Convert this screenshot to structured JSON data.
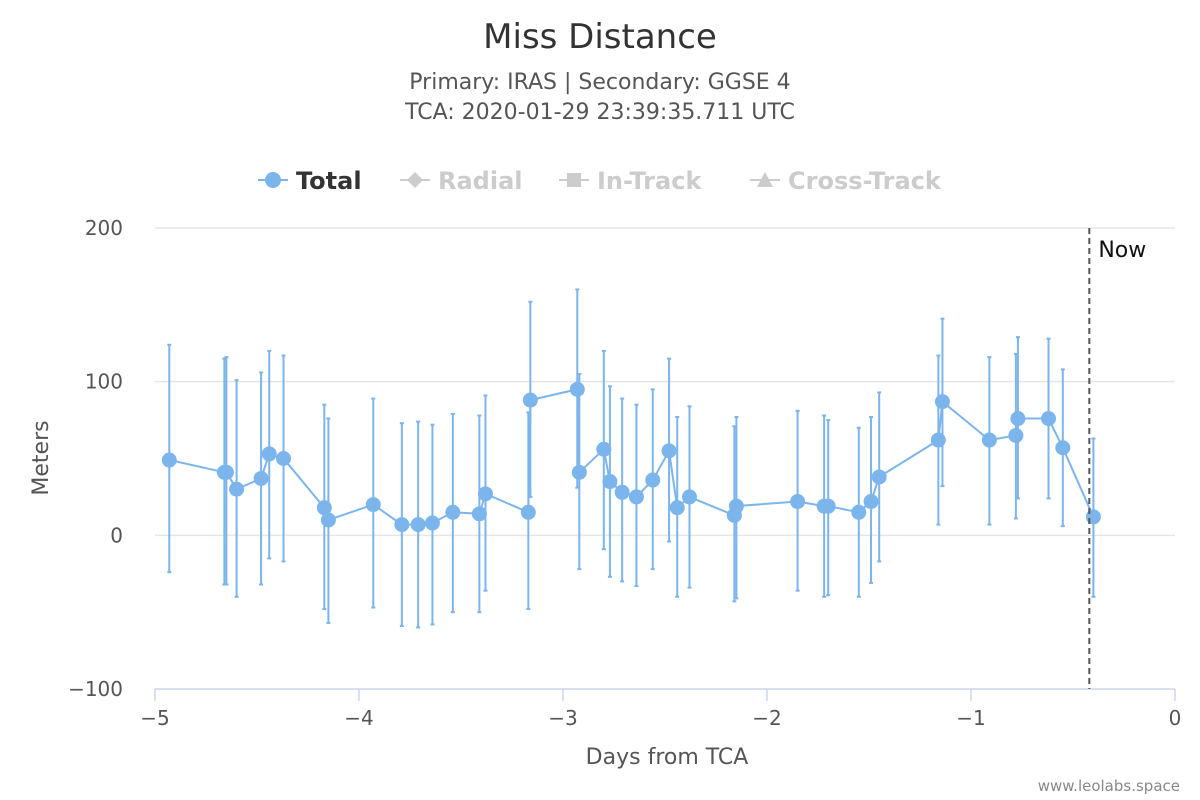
{
  "chart_data": {
    "type": "line",
    "title": "Miss Distance",
    "subtitle_line1": "Primary: IRAS | Secondary: GGSE 4",
    "subtitle_line2": "TCA: 2020-01-29 23:39:35.711 UTC",
    "xlabel": "Days from TCA",
    "ylabel": "Meters",
    "xlim": [
      -5,
      0
    ],
    "ylim": [
      -100,
      200
    ],
    "x_ticks": [
      -5,
      -4,
      -3,
      -2,
      -1,
      0
    ],
    "x_tick_labels": [
      "−5",
      "−4",
      "−3",
      "−2",
      "−1",
      "0"
    ],
    "y_ticks": [
      -100,
      0,
      100,
      200
    ],
    "y_tick_labels": [
      "−100",
      "0",
      "100",
      "200"
    ],
    "legend": [
      {
        "name": "Total",
        "active": true,
        "symbol": "circle"
      },
      {
        "name": "Radial",
        "active": false,
        "symbol": "diamond"
      },
      {
        "name": "In-Track",
        "active": false,
        "symbol": "square"
      },
      {
        "name": "Cross-Track",
        "active": false,
        "symbol": "triangle"
      }
    ],
    "plot_line": {
      "x": -0.42,
      "label": "Now"
    },
    "series": [
      {
        "name": "Total",
        "color": "#7cb5ec",
        "points": [
          {
            "x": -4.93,
            "y": 49,
            "low": -24,
            "high": 124
          },
          {
            "x": -4.66,
            "y": 41,
            "low": -32,
            "high": 115
          },
          {
            "x": -4.65,
            "y": 41,
            "low": -32,
            "high": 116
          },
          {
            "x": -4.6,
            "y": 30,
            "low": -40,
            "high": 101
          },
          {
            "x": -4.48,
            "y": 37,
            "low": -32,
            "high": 106
          },
          {
            "x": -4.44,
            "y": 53,
            "low": -15,
            "high": 120
          },
          {
            "x": -4.37,
            "y": 50,
            "low": -17,
            "high": 117
          },
          {
            "x": -4.17,
            "y": 18,
            "low": -48,
            "high": 85
          },
          {
            "x": -4.15,
            "y": 10,
            "low": -57,
            "high": 76
          },
          {
            "x": -3.93,
            "y": 20,
            "low": -47,
            "high": 89
          },
          {
            "x": -3.79,
            "y": 7,
            "low": -59,
            "high": 73
          },
          {
            "x": -3.71,
            "y": 7,
            "low": -60,
            "high": 74
          },
          {
            "x": -3.64,
            "y": 8,
            "low": -58,
            "high": 72
          },
          {
            "x": -3.54,
            "y": 15,
            "low": -50,
            "high": 79
          },
          {
            "x": -3.41,
            "y": 14,
            "low": -50,
            "high": 78
          },
          {
            "x": -3.38,
            "y": 27,
            "low": -36,
            "high": 91
          },
          {
            "x": -3.17,
            "y": 15,
            "low": -48,
            "high": 80
          },
          {
            "x": -3.16,
            "y": 88,
            "low": 25,
            "high": 152
          },
          {
            "x": -2.93,
            "y": 95,
            "low": 31,
            "high": 160
          },
          {
            "x": -2.92,
            "y": 41,
            "low": -22,
            "high": 105
          },
          {
            "x": -2.8,
            "y": 56,
            "low": -9,
            "high": 120
          },
          {
            "x": -2.77,
            "y": 35,
            "low": -27,
            "high": 97
          },
          {
            "x": -2.71,
            "y": 28,
            "low": -30,
            "high": 89
          },
          {
            "x": -2.64,
            "y": 25,
            "low": -33,
            "high": 85
          },
          {
            "x": -2.56,
            "y": 36,
            "low": -22,
            "high": 95
          },
          {
            "x": -2.48,
            "y": 55,
            "low": -4,
            "high": 115
          },
          {
            "x": -2.44,
            "y": 18,
            "low": -40,
            "high": 77
          },
          {
            "x": -2.38,
            "y": 25,
            "low": -34,
            "high": 84
          },
          {
            "x": -2.16,
            "y": 13,
            "low": -43,
            "high": 71
          },
          {
            "x": -2.15,
            "y": 19,
            "low": -41,
            "high": 77
          },
          {
            "x": -1.85,
            "y": 22,
            "low": -36,
            "high": 81
          },
          {
            "x": -1.72,
            "y": 19,
            "low": -40,
            "high": 78
          },
          {
            "x": -1.7,
            "y": 19,
            "low": -39,
            "high": 75
          },
          {
            "x": -1.55,
            "y": 15,
            "low": -40,
            "high": 70
          },
          {
            "x": -1.49,
            "y": 22,
            "low": -31,
            "high": 77
          },
          {
            "x": -1.45,
            "y": 38,
            "low": -17,
            "high": 93
          },
          {
            "x": -1.16,
            "y": 62,
            "low": 7,
            "high": 117
          },
          {
            "x": -1.14,
            "y": 87,
            "low": 32,
            "high": 141
          },
          {
            "x": -0.91,
            "y": 62,
            "low": 7,
            "high": 116
          },
          {
            "x": -0.78,
            "y": 65,
            "low": 11,
            "high": 118
          },
          {
            "x": -0.77,
            "y": 76,
            "low": 24,
            "high": 129
          },
          {
            "x": -0.62,
            "y": 76,
            "low": 24,
            "high": 128
          },
          {
            "x": -0.55,
            "y": 57,
            "low": 6,
            "high": 108
          },
          {
            "x": -0.4,
            "y": 12,
            "low": -40,
            "high": 63
          }
        ]
      }
    ]
  },
  "credit": "www.leolabs.space"
}
